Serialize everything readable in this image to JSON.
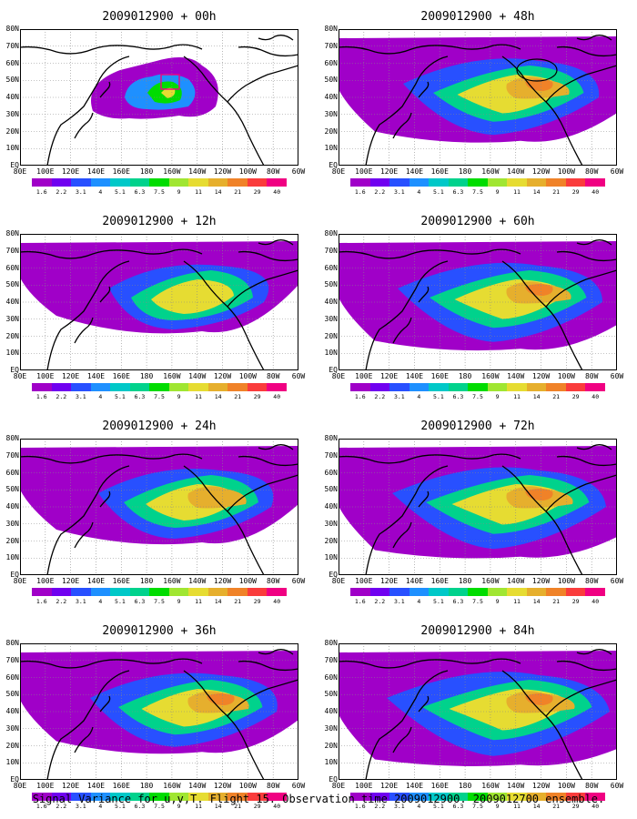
{
  "panels": [
    {
      "title": "2009012900 + 00h",
      "level": 0.0
    },
    {
      "title": "2009012900 + 12h",
      "level": 0.2
    },
    {
      "title": "2009012900 + 24h",
      "level": 0.4
    },
    {
      "title": "2009012900 + 36h",
      "level": 0.55
    },
    {
      "title": "2009012900 + 48h",
      "level": 0.65
    },
    {
      "title": "2009012900 + 60h",
      "level": 0.75
    },
    {
      "title": "2009012900 + 72h",
      "level": 0.85
    },
    {
      "title": "2009012900 + 84h",
      "level": 0.95
    }
  ],
  "x_labels": [
    "80E",
    "100E",
    "120E",
    "140E",
    "160E",
    "180",
    "160W",
    "140W",
    "120W",
    "100W",
    "80W",
    "60W"
  ],
  "y_labels": [
    "EQ",
    "10N",
    "20N",
    "30N",
    "40N",
    "50N",
    "60N",
    "70N",
    "80N"
  ],
  "colorbar": {
    "labels": [
      "1.6",
      "2.2",
      "3.1",
      "4",
      "5.1",
      "6.3",
      "7.5",
      "9",
      "11",
      "14",
      "21",
      "29",
      "40"
    ],
    "colors": [
      "#a000c8",
      "#7000f0",
      "#2850ff",
      "#1e90ff",
      "#00c8c8",
      "#00d28c",
      "#00dc00",
      "#a0e632",
      "#e6dc32",
      "#e6af2d",
      "#f08228",
      "#fa3c3c",
      "#f00082"
    ]
  },
  "footer": "Signal Variance for u,v,T. Flight 15. Observation time 2009012900. 2009012700 ensemble."
}
